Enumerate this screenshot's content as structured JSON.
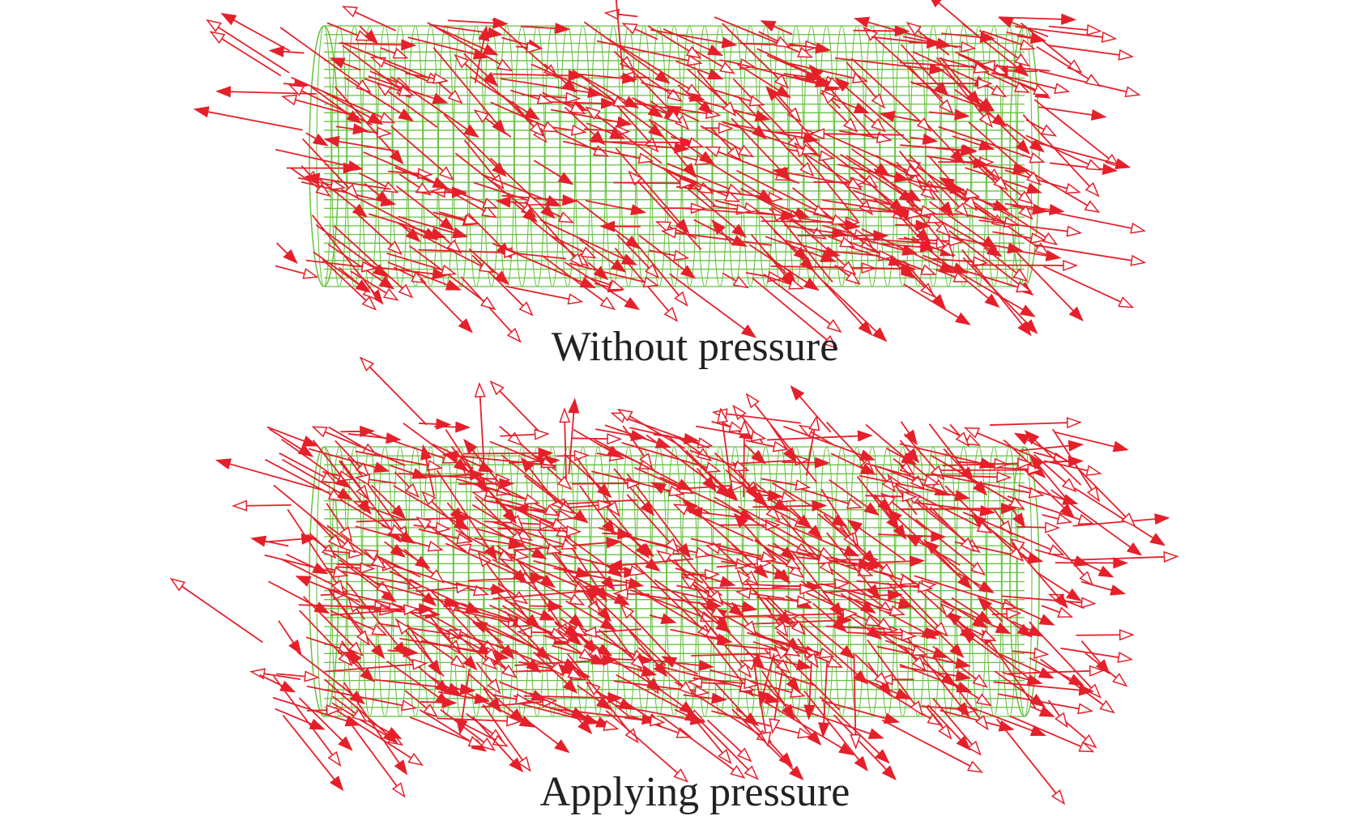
{
  "panels": [
    {
      "label": "Without pressure"
    },
    {
      "label": "Applying pressure"
    }
  ]
}
